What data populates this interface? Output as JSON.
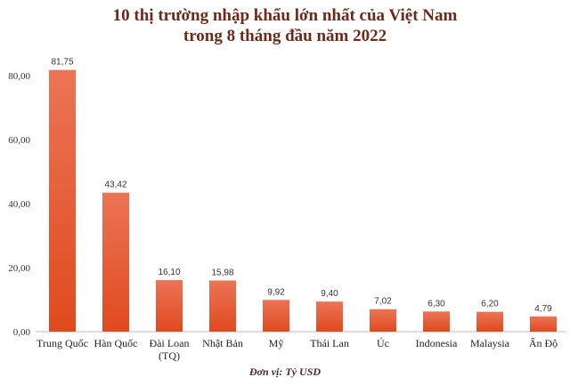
{
  "chart_data": {
    "type": "bar",
    "title_line1": "10 thị trường nhập khẩu lớn nhất của Việt Nam",
    "title_line2": "trong 8 tháng đầu năm 2022",
    "categories": [
      "Trung Quốc",
      "Hàn Quốc",
      "Đài Loan (TQ)",
      "Nhật Bản",
      "Mỹ",
      "Thái Lan",
      "Úc",
      "Indonesia",
      "Malaysia",
      "Ấn Độ"
    ],
    "values": [
      81.75,
      43.42,
      16.1,
      15.98,
      9.92,
      9.4,
      7.02,
      6.3,
      6.2,
      4.79
    ],
    "value_labels": [
      "81,75",
      "43,42",
      "16,10",
      "15,98",
      "9,92",
      "9,40",
      "7,02",
      "6,30",
      "6,20",
      "4,79"
    ],
    "y_ticks": [
      0,
      20,
      40,
      60,
      80
    ],
    "y_tick_labels": [
      "0,00",
      "20,00",
      "40,00",
      "60,00",
      "80,00"
    ],
    "ylim": [
      0,
      86
    ],
    "grid": false,
    "legend": "none",
    "bar_color_top": "#ec7456",
    "bar_color_bottom": "#e04a1e",
    "unit_note": "Đơn vị: Tỷ USD"
  }
}
